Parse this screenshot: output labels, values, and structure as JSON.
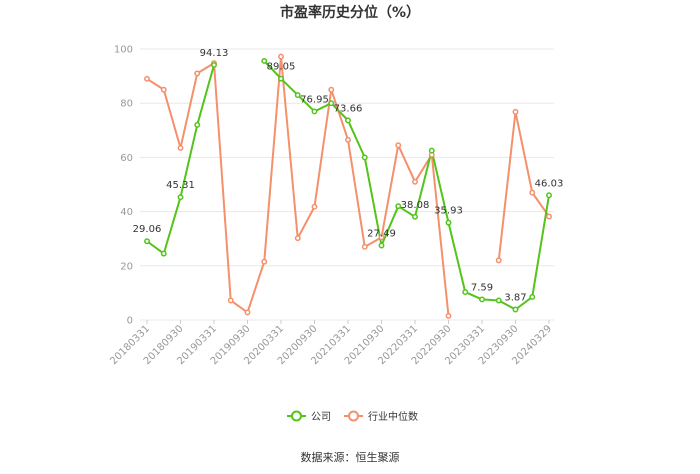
{
  "chart_data": {
    "type": "line",
    "title": "市盈率历史分位（%）",
    "source": "数据来源：恒生聚源",
    "ylim": [
      0,
      100
    ],
    "yticks": [
      0,
      20,
      40,
      60,
      80,
      100
    ],
    "grid": true,
    "legend_position": "bottom",
    "x_tick_labels": [
      "20180331",
      "20180930",
      "20190331",
      "20190930",
      "20200331",
      "20200930",
      "20210331",
      "20210930",
      "20220331",
      "20220930",
      "20230331",
      "20230930",
      "20240329"
    ],
    "colors": {
      "company": "#52c41a",
      "industry": "#f4906b"
    },
    "series": [
      {
        "name": "公司",
        "color": "#52c41a",
        "values": [
          29.06,
          24.5,
          45.31,
          72.0,
          94.13,
          null,
          null,
          95.6,
          89.05,
          83.0,
          76.95,
          80.0,
          73.66,
          60.0,
          27.49,
          42.0,
          38.08,
          62.5,
          35.93,
          10.3,
          7.59,
          7.2,
          3.87,
          8.5,
          46.03
        ],
        "labels": [
          "29.06",
          "",
          "45.31",
          "",
          "94.13",
          "",
          "",
          "",
          "89.05",
          "",
          "76.95",
          "",
          "73.66",
          "",
          "27.49",
          "",
          "38.08",
          "",
          "35.93",
          "",
          "7.59",
          "",
          "3.87",
          "",
          "46.03"
        ]
      },
      {
        "name": "行业中位数",
        "color": "#f4906b",
        "values": [
          89.0,
          85.0,
          63.5,
          91.0,
          94.8,
          7.2,
          2.8,
          21.5,
          97.2,
          30.2,
          41.8,
          85.0,
          66.5,
          27.0,
          30.5,
          64.5,
          51.0,
          61.0,
          1.5,
          null,
          null,
          22.0,
          76.8,
          47.0,
          38.2
        ]
      }
    ]
  }
}
